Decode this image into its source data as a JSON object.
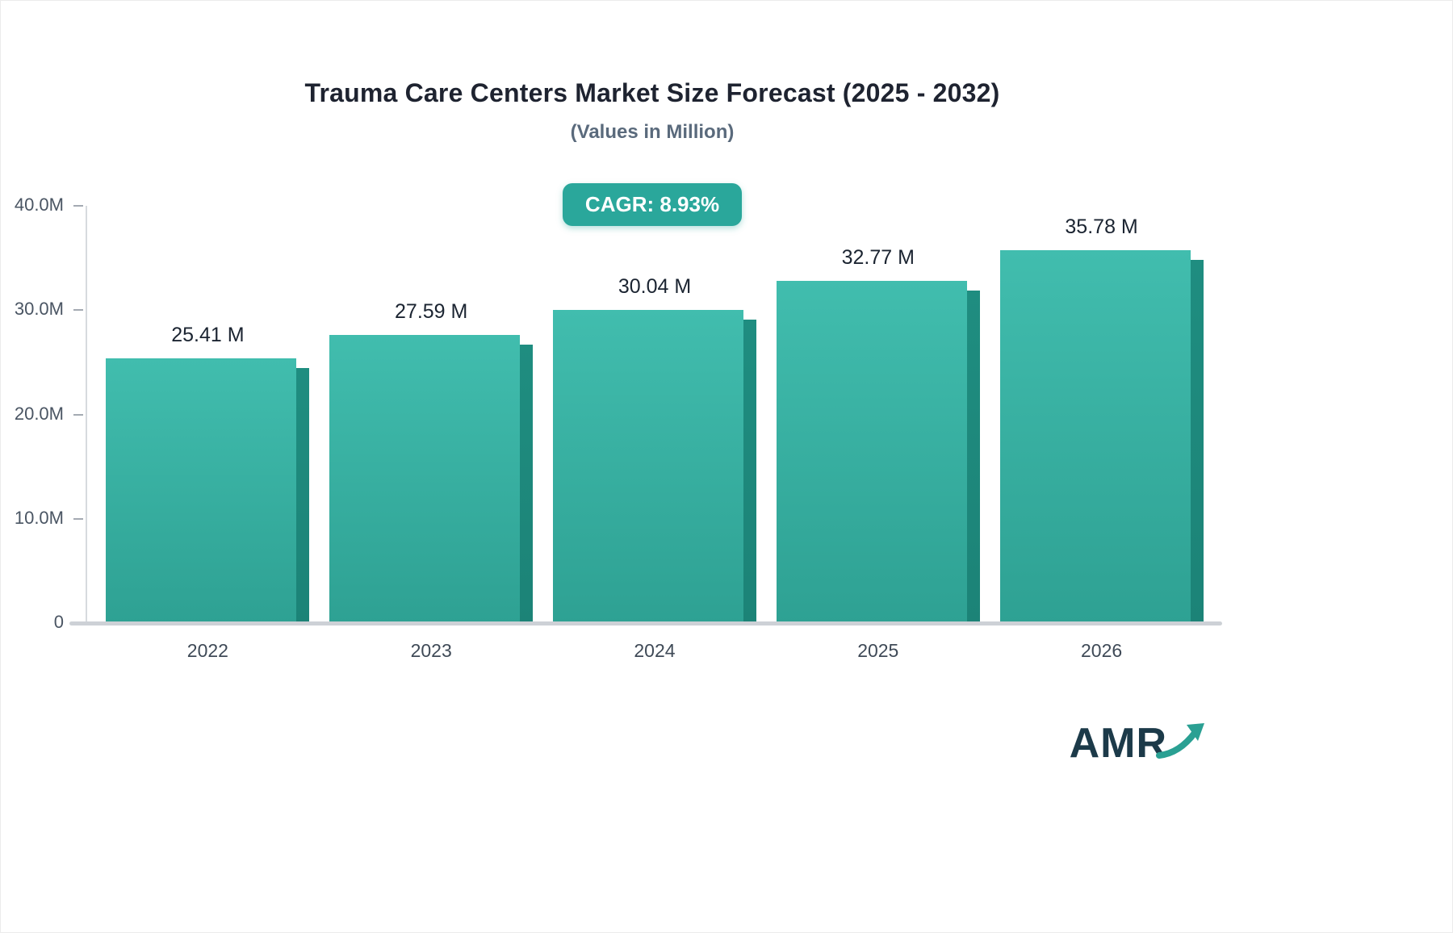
{
  "title": "Trauma Care Centers Market Size Forecast (2025 - 2032)",
  "subtitle": "(Values in Million)",
  "cagr_label": "CAGR: 8.93%",
  "logo_text": "AMR",
  "colors": {
    "accent": "#2aa79b",
    "bar_top": "#41bdae",
    "bar_bottom": "#2ea193",
    "bar_side": "#1f8d80",
    "title_text": "#1e2330",
    "subtitle_text": "#5a6a7c",
    "axis_text": "#4a5563",
    "logo_text": "#1c3a49"
  },
  "chart_data": {
    "type": "bar",
    "title": "Trauma Care Centers Market Size Forecast (2025 - 2032)",
    "subtitle": "(Values in Million)",
    "categories": [
      "2022",
      "2023",
      "2024",
      "2025",
      "2026"
    ],
    "values": [
      25.41,
      27.59,
      30.04,
      32.77,
      35.78
    ],
    "value_labels": [
      "25.41 M",
      "27.59 M",
      "30.04 M",
      "32.77 M",
      "35.78 M"
    ],
    "xlabel": "",
    "ylabel": "",
    "ylim": [
      0,
      40
    ],
    "yticks": [
      {
        "label": "0",
        "value": 0
      },
      {
        "label": "10.0M",
        "value": 10
      },
      {
        "label": "20.0M",
        "value": 20
      },
      {
        "label": "30.0M",
        "value": 30
      },
      {
        "label": "40.0M",
        "value": 40
      }
    ],
    "grid": false,
    "legend": "none",
    "annotation": "CAGR: 8.93%"
  }
}
